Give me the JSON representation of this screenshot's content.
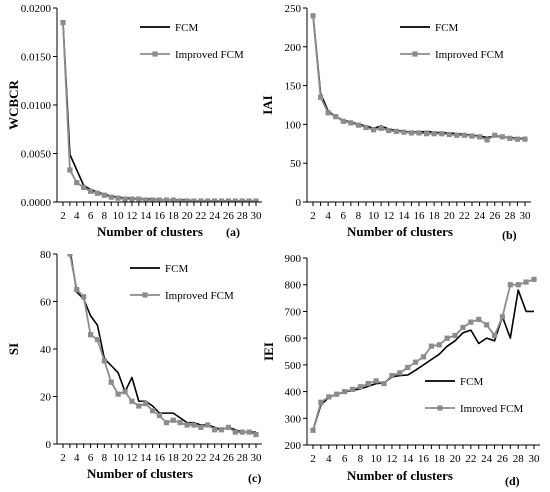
{
  "colors": {
    "fcm": "#000000",
    "improved": "#8c8c8c"
  },
  "chart_data": [
    {
      "type": "line",
      "panel_label": "(a)",
      "xlabel": "Number of clusters",
      "ylabel": "WCBCR",
      "ylim": [
        0,
        0.02
      ],
      "yticks": [
        "0.0000",
        "0.0050",
        "0.0100",
        "0.0150",
        "0.0200"
      ],
      "yticks_values": [
        0,
        0.005,
        0.01,
        0.015,
        0.02
      ],
      "xticks": [
        2,
        4,
        6,
        8,
        10,
        12,
        14,
        16,
        18,
        20,
        22,
        24,
        26,
        28,
        30
      ],
      "legend_position": "top-right",
      "x": [
        2,
        3,
        4,
        5,
        6,
        7,
        8,
        9,
        10,
        11,
        12,
        13,
        14,
        15,
        16,
        17,
        18,
        19,
        20,
        21,
        22,
        23,
        24,
        25,
        26,
        27,
        28,
        29,
        30
      ],
      "series": [
        {
          "name": "FCM",
          "style": "line",
          "values": [
            0.0185,
            0.0049,
            0.0033,
            0.0017,
            0.0013,
            0.001,
            0.0008,
            0.0006,
            0.0005,
            0.0004,
            0.0004,
            0.0003,
            0.0003,
            0.0003,
            0.0002,
            0.0002,
            0.0002,
            0.0002,
            0.0002,
            0.0001,
            0.0001,
            0.0001,
            0.0001,
            0.0001,
            0.0001,
            0.0001,
            0.0001,
            0.0001,
            0.0001
          ]
        },
        {
          "name": "Improved FCM",
          "style": "line-square",
          "values": [
            0.0185,
            0.0033,
            0.002,
            0.0015,
            0.0011,
            0.0009,
            0.0007,
            0.0005,
            0.0004,
            0.0003,
            0.0003,
            0.0003,
            0.0002,
            0.0002,
            0.0002,
            0.0002,
            0.0002,
            0.0001,
            0.0001,
            0.0001,
            0.0001,
            0.0001,
            0.0001,
            0.0001,
            0.0001,
            0.0001,
            0.0001,
            0.0001,
            0.0001
          ]
        }
      ]
    },
    {
      "type": "line",
      "panel_label": "(b)",
      "xlabel": "Number of clusters",
      "ylabel": "IAI",
      "ylim": [
        0,
        250
      ],
      "yticks": [
        "0",
        "50",
        "100",
        "150",
        "200",
        "250"
      ],
      "yticks_values": [
        0,
        50,
        100,
        150,
        200,
        250
      ],
      "xticks": [
        2,
        4,
        6,
        8,
        10,
        12,
        14,
        16,
        18,
        20,
        22,
        24,
        26,
        28,
        30
      ],
      "legend_position": "top-right",
      "x": [
        2,
        3,
        4,
        5,
        6,
        7,
        8,
        9,
        10,
        11,
        12,
        13,
        14,
        15,
        16,
        17,
        18,
        19,
        20,
        21,
        22,
        23,
        24,
        25,
        26,
        27,
        28,
        29,
        30
      ],
      "series": [
        {
          "name": "FCM",
          "style": "line",
          "values": [
            242,
            140,
            117,
            110,
            105,
            103,
            100,
            98,
            95,
            98,
            94,
            92,
            91,
            90,
            90,
            91,
            90,
            89,
            89,
            88,
            87,
            86,
            85,
            83,
            85,
            84,
            83,
            82,
            82
          ]
        },
        {
          "name": "Improved FCM",
          "style": "line-square",
          "values": [
            240,
            135,
            115,
            110,
            104,
            102,
            99,
            96,
            93,
            95,
            92,
            91,
            90,
            89,
            89,
            88,
            88,
            88,
            87,
            86,
            86,
            85,
            84,
            80,
            86,
            84,
            82,
            81,
            81
          ]
        }
      ]
    },
    {
      "type": "line",
      "panel_label": "(c)",
      "xlabel": "Number of clusters",
      "ylabel": "SI",
      "ylim": [
        0,
        80
      ],
      "yticks": [
        "0",
        "20",
        "40",
        "60",
        "80"
      ],
      "yticks_values": [
        0,
        20,
        40,
        60,
        80
      ],
      "xticks": [
        2,
        4,
        6,
        8,
        10,
        12,
        14,
        16,
        18,
        20,
        22,
        24,
        26,
        28,
        30
      ],
      "legend_position": "top-right",
      "x": [
        2,
        3,
        4,
        5,
        6,
        7,
        8,
        9,
        10,
        11,
        12,
        13,
        14,
        15,
        16,
        17,
        18,
        19,
        20,
        21,
        22,
        23,
        24,
        25,
        26,
        27,
        28,
        29,
        30
      ],
      "series": [
        {
          "name": "FCM",
          "style": "line",
          "values": [
            116,
            82,
            64,
            61,
            54,
            50,
            36,
            33,
            30,
            22,
            28,
            18,
            18,
            16,
            13,
            13,
            13,
            11,
            9,
            9,
            8,
            8,
            7,
            6,
            7,
            6,
            5,
            5,
            5
          ]
        },
        {
          "name": "Improved FCM",
          "style": "line-square",
          "values": [
            116,
            80,
            65,
            62,
            46,
            44,
            35,
            26,
            21,
            22,
            18,
            16,
            17,
            14,
            12,
            9,
            10,
            9,
            8,
            8,
            7,
            8,
            6,
            6,
            7,
            5,
            5,
            5,
            4
          ]
        }
      ]
    },
    {
      "type": "line",
      "panel_label": "(d)",
      "xlabel": "Number of clusters",
      "ylabel": "IEI",
      "ylim": [
        200,
        900
      ],
      "yticks": [
        "200",
        "300",
        "400",
        "500",
        "600",
        "700",
        "800",
        "900"
      ],
      "yticks_values": [
        200,
        300,
        400,
        500,
        600,
        700,
        800,
        900
      ],
      "xticks": [
        2,
        4,
        6,
        8,
        10,
        12,
        14,
        16,
        18,
        20,
        22,
        24,
        26,
        28,
        30
      ],
      "legend_position": "bottom-center",
      "legend_labels": [
        "FCM",
        "Imroved FCM"
      ],
      "x": [
        2,
        3,
        4,
        5,
        6,
        7,
        8,
        9,
        10,
        11,
        12,
        13,
        14,
        15,
        16,
        17,
        18,
        19,
        20,
        21,
        22,
        23,
        24,
        25,
        26,
        27,
        28,
        29,
        30
      ],
      "series": [
        {
          "name": "FCM",
          "style": "line",
          "values": [
            255,
            350,
            378,
            390,
            398,
            405,
            410,
            420,
            430,
            432,
            455,
            460,
            462,
            480,
            500,
            520,
            540,
            570,
            590,
            620,
            630,
            580,
            600,
            590,
            680,
            600,
            780,
            700,
            700
          ]
        },
        {
          "name": "Imroved FCM",
          "style": "line-square",
          "values": [
            255,
            360,
            380,
            390,
            400,
            408,
            418,
            430,
            440,
            430,
            460,
            470,
            490,
            510,
            530,
            570,
            575,
            600,
            610,
            640,
            660,
            670,
            650,
            610,
            680,
            800,
            800,
            810,
            820
          ]
        }
      ]
    }
  ]
}
